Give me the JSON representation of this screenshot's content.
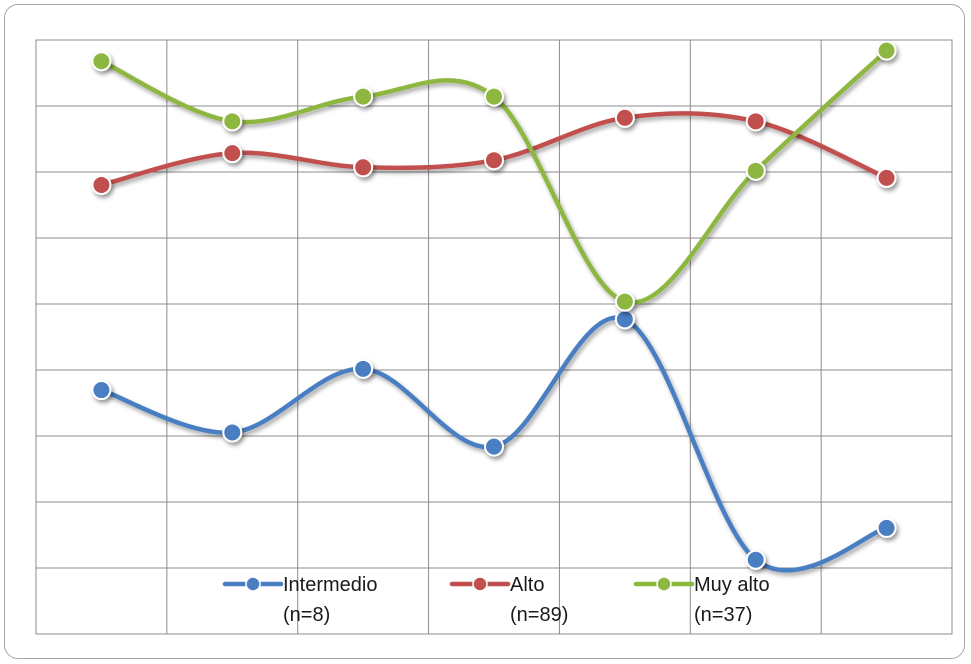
{
  "chart_data": {
    "type": "line",
    "smooth": true,
    "grid": true,
    "legend_placement": "bottom",
    "x_count": 7,
    "ylim": [
      0,
      8.4
    ],
    "series": [
      {
        "name_line1": "Intermedio",
        "name_line2": "(n=8)",
        "color": "#4a7ec2",
        "values": [
          3.45,
          2.85,
          3.75,
          2.65,
          4.45,
          1.05,
          1.5
        ]
      },
      {
        "name_line1": "Alto",
        "name_line2": "(n=89)",
        "color": "#c0504d",
        "values": [
          6.35,
          6.8,
          6.6,
          6.7,
          7.3,
          7.25,
          6.45
        ]
      },
      {
        "name_line1": "Muy alto",
        "name_line2": "(n=37)",
        "color": "#8db73f",
        "values": [
          8.1,
          7.25,
          7.6,
          7.6,
          4.7,
          6.55,
          8.25
        ]
      }
    ]
  }
}
